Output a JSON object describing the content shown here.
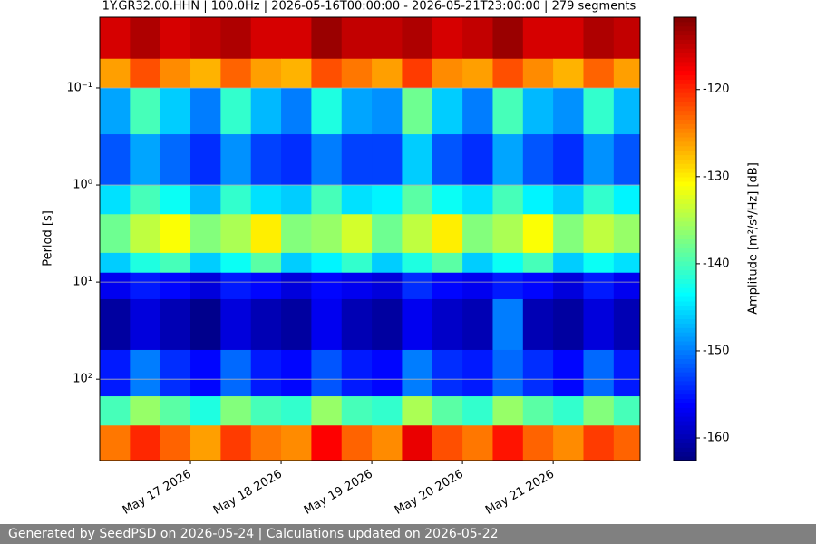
{
  "chart_data": {
    "type": "heatmap",
    "title": "1Y.GR32.00.HHN | 100.0Hz | 2026-05-16T00:00:00 - 2026-05-21T23:00:00 | 279 segments",
    "ylabel": "Period [s]",
    "colorbar_label": "Amplitude [m²/s⁴/Hz] [dB]",
    "colormap": "jet",
    "log_y": true,
    "y_inverted": true,
    "grid": true,
    "xlim": [
      "2026-05-16T00:00:00",
      "2026-05-21T23:00:00"
    ],
    "xticks": [
      {
        "value": "2026-05-17T00:00:00",
        "label": "May 17 2026"
      },
      {
        "value": "2026-05-18T00:00:00",
        "label": "May 18 2026"
      },
      {
        "value": "2026-05-19T00:00:00",
        "label": "May 19 2026"
      },
      {
        "value": "2026-05-20T00:00:00",
        "label": "May 20 2026"
      },
      {
        "value": "2026-05-21T00:00:00",
        "label": "May 21 2026"
      }
    ],
    "ylim": [
      0.0187,
      690
    ],
    "yticks": [
      {
        "value": 0.1,
        "label": "10⁻¹"
      },
      {
        "value": 1,
        "label": "10⁰"
      },
      {
        "value": 10,
        "label": "10¹"
      },
      {
        "value": 100,
        "label": "10²"
      }
    ],
    "clim": [
      -162.6,
      -111.7
    ],
    "cticks": [
      -160,
      -150,
      -140,
      -130,
      -120
    ],
    "x": [
      "2026-05-16T00:00:00",
      "2026-05-16T08:00:00",
      "2026-05-16T16:00:00",
      "2026-05-17T00:00:00",
      "2026-05-17T08:00:00",
      "2026-05-17T16:00:00",
      "2026-05-18T00:00:00",
      "2026-05-18T08:00:00",
      "2026-05-18T16:00:00",
      "2026-05-19T00:00:00",
      "2026-05-19T08:00:00",
      "2026-05-19T16:00:00",
      "2026-05-20T00:00:00",
      "2026-05-20T08:00:00",
      "2026-05-20T16:00:00",
      "2026-05-21T00:00:00",
      "2026-05-21T08:00:00",
      "2026-05-21T16:00:00"
    ],
    "period_bins": [
      0.0187,
      0.05,
      0.1,
      0.3,
      1,
      2,
      5,
      8,
      15,
      50,
      150,
      300,
      690
    ],
    "values": [
      [
        -116,
        -114,
        -116,
        -115,
        -114,
        -116,
        -116,
        -113,
        -115,
        -115,
        -114,
        -116,
        -115,
        -113,
        -116,
        -116,
        -114,
        -115
      ],
      [
        -126,
        -122,
        -125,
        -127,
        -123,
        -126,
        -127,
        -122,
        -124,
        -126,
        -121,
        -125,
        -126,
        -122,
        -125,
        -127,
        -123,
        -126
      ],
      [
        -148,
        -140,
        -146,
        -150,
        -141,
        -147,
        -150,
        -142,
        -148,
        -149,
        -138,
        -146,
        -150,
        -140,
        -147,
        -149,
        -141,
        -147
      ],
      [
        -152,
        -148,
        -151,
        -154,
        -149,
        -153,
        -154,
        -150,
        -153,
        -153,
        -146,
        -152,
        -154,
        -148,
        -152,
        -154,
        -149,
        -152
      ],
      [
        -145,
        -140,
        -143,
        -147,
        -141,
        -145,
        -146,
        -140,
        -145,
        -144,
        -139,
        -143,
        -145,
        -140,
        -144,
        -146,
        -141,
        -144
      ],
      [
        -138,
        -134,
        -131,
        -137,
        -135,
        -130,
        -137,
        -136,
        -133,
        -138,
        -134,
        -130,
        -137,
        -135,
        -131,
        -137,
        -134,
        -136
      ],
      [
        -146,
        -142,
        -140,
        -146,
        -143,
        -139,
        -146,
        -144,
        -141,
        -146,
        -142,
        -139,
        -146,
        -143,
        -140,
        -146,
        -143,
        -145
      ],
      [
        -157,
        -155,
        -156,
        -158,
        -155,
        -156,
        -158,
        -156,
        -157,
        -158,
        -154,
        -156,
        -157,
        -155,
        -156,
        -158,
        -155,
        -157
      ],
      [
        -161,
        -158,
        -160,
        -162,
        -158,
        -160,
        -161,
        -157,
        -160,
        -161,
        -157,
        -159,
        -160,
        -150,
        -160,
        -161,
        -158,
        -160
      ],
      [
        -155,
        -150,
        -154,
        -156,
        -151,
        -155,
        -156,
        -152,
        -155,
        -156,
        -150,
        -154,
        -155,
        -151,
        -154,
        -156,
        -151,
        -155
      ],
      [
        -140,
        -136,
        -139,
        -142,
        -137,
        -140,
        -141,
        -136,
        -140,
        -141,
        -135,
        -139,
        -141,
        -136,
        -139,
        -141,
        -137,
        -140
      ],
      [
        -124,
        -120,
        -123,
        -126,
        -121,
        -124,
        -125,
        -118,
        -123,
        -125,
        -117,
        -122,
        -124,
        -119,
        -123,
        -125,
        -121,
        -123
      ]
    ]
  },
  "footer": "Generated by SeedPSD on 2026-05-24 | Calculations updated on 2026-05-22"
}
